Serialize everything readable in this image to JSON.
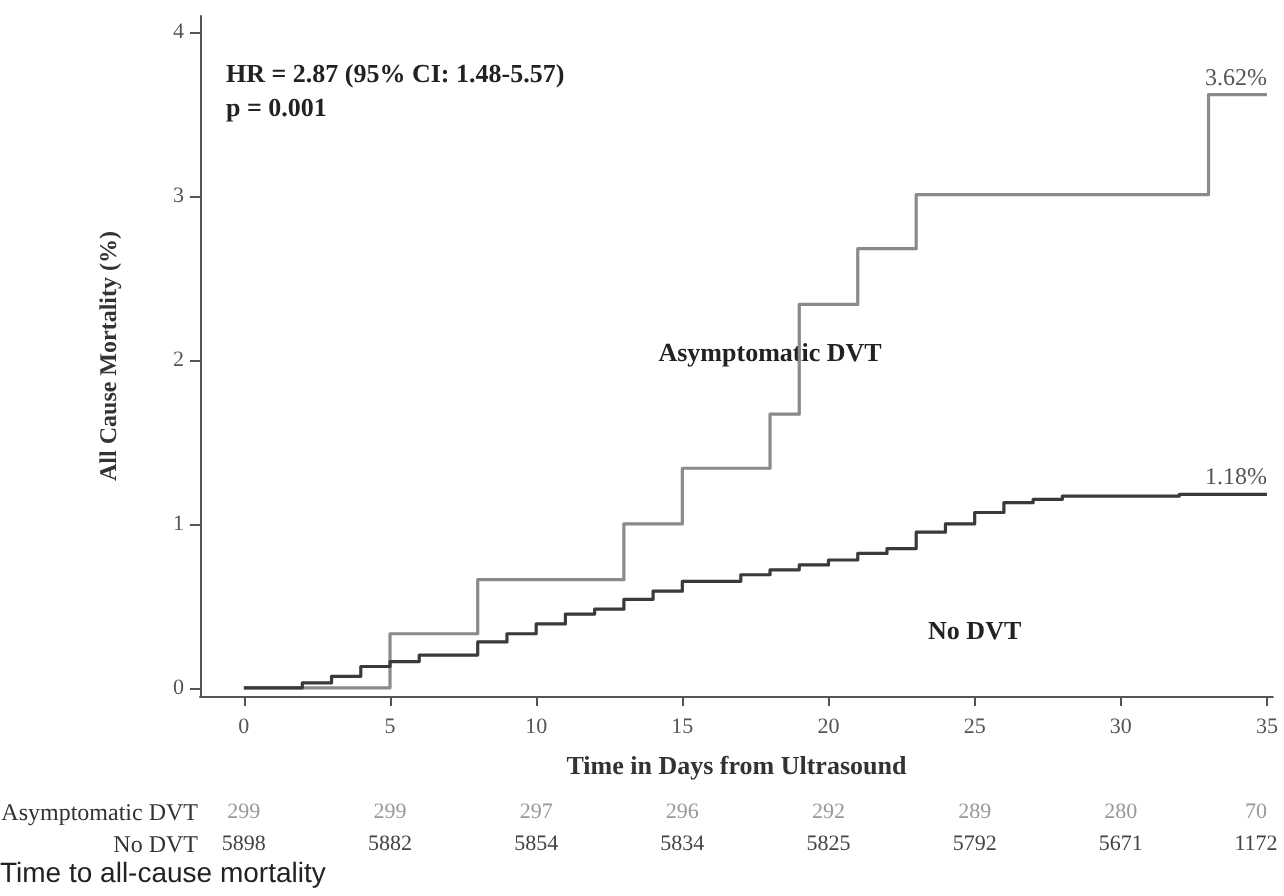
{
  "chart_data": {
    "type": "step",
    "xlabel": "Time in Days from Ultrasound",
    "ylabel": "All Cause Mortality (%)",
    "xlim": [
      -1.5,
      35.2
    ],
    "ylim": [
      -0.05,
      4.1
    ],
    "xticks": [
      0,
      5,
      10,
      15,
      20,
      25,
      30,
      35
    ],
    "yticks": [
      0,
      1,
      2,
      3,
      4
    ],
    "grid": false,
    "legend": false,
    "marker": "none",
    "line_style": "solid",
    "series": [
      {
        "name": "Asymptomatic DVT",
        "color": "#8a8a8a",
        "x": [
          0,
          5,
          8,
          13,
          15,
          18,
          19,
          21,
          23,
          33,
          35
        ],
        "values": [
          0,
          0.33,
          0.66,
          1.0,
          1.34,
          1.67,
          2.34,
          2.68,
          3.01,
          3.62,
          3.62
        ]
      },
      {
        "name": "No DVT",
        "color": "#3a3a3a",
        "x": [
          0,
          2,
          3,
          4,
          5,
          6,
          8,
          9,
          10,
          11,
          12,
          13,
          14,
          15,
          17,
          18,
          19,
          20,
          21,
          22,
          23,
          24,
          25,
          26,
          27,
          28,
          32,
          35
        ],
        "values": [
          0,
          0.03,
          0.07,
          0.13,
          0.16,
          0.2,
          0.28,
          0.33,
          0.39,
          0.45,
          0.48,
          0.54,
          0.59,
          0.65,
          0.69,
          0.72,
          0.75,
          0.78,
          0.82,
          0.85,
          0.95,
          1.0,
          1.07,
          1.13,
          1.15,
          1.17,
          1.18,
          1.18
        ]
      }
    ],
    "annotations": [
      "HR = 2.87 (95% CI: 1.48-5.57)",
      "p = 0.001",
      {
        "text": "3.62%",
        "x": 35,
        "y": 3.62
      },
      {
        "text": "1.18%",
        "x": 35,
        "y": 1.18
      },
      "299",
      "299",
      "297",
      "296",
      "292",
      "289",
      "280",
      "70",
      "5898",
      "5882",
      "5854",
      "5834",
      "5825",
      "5792",
      "5671",
      "1172",
      "Time to all-cause mortality"
    ]
  }
}
